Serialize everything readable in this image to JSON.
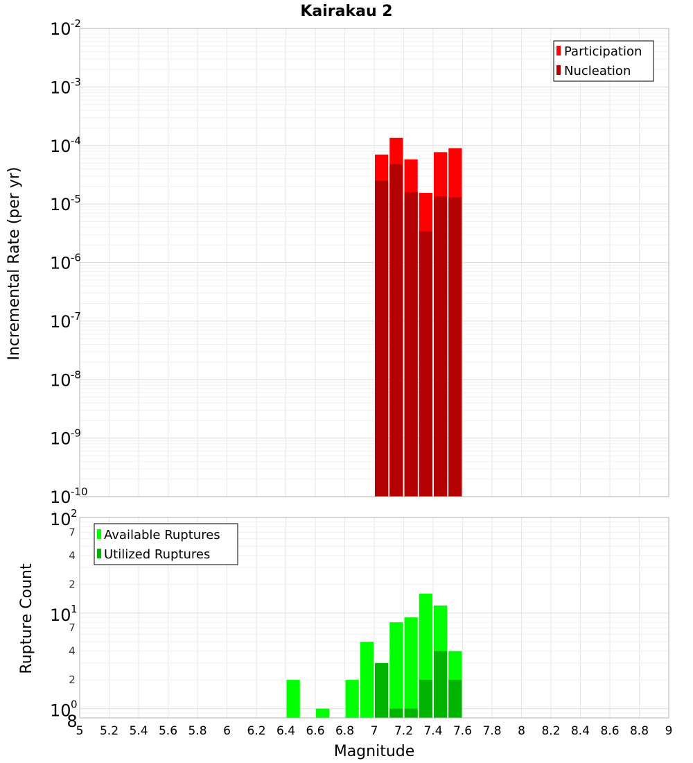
{
  "chart_data": [
    {
      "type": "bar",
      "title": "Kairakau 2",
      "xlabel": "",
      "ylabel": "Incremental Rate (per yr)",
      "y_scale": "log",
      "xlim": [
        5,
        9
      ],
      "ylim": [
        1e-10,
        0.01
      ],
      "y_tick_labels": [
        {
          "base": "10",
          "exp": "-10",
          "value": 1e-10
        },
        {
          "base": "10",
          "exp": "-9",
          "value": 1e-09
        },
        {
          "base": "10",
          "exp": "-8",
          "value": 1e-08
        },
        {
          "base": "10",
          "exp": "-7",
          "value": 1e-07
        },
        {
          "base": "10",
          "exp": "-6",
          "value": 1e-06
        },
        {
          "base": "10",
          "exp": "-5",
          "value": 1e-05
        },
        {
          "base": "10",
          "exp": "-4",
          "value": 0.0001
        },
        {
          "base": "10",
          "exp": "-3",
          "value": 0.001
        },
        {
          "base": "10",
          "exp": "-2",
          "value": 0.01
        }
      ],
      "legend": {
        "position": "top-right",
        "entries": [
          "Participation",
          "Nucleation"
        ]
      },
      "x": [
        7.05,
        7.15,
        7.25,
        7.35,
        7.45,
        7.55
      ],
      "series": [
        {
          "name": "Participation",
          "color": "#ff0000",
          "values": [
            7e-05,
            0.000135,
            5.8e-05,
            1.55e-05,
            7.7e-05,
            9e-05
          ]
        },
        {
          "name": "Nucleation",
          "color": "#b30000",
          "values": [
            2.5e-05,
            4.8e-05,
            1.6e-05,
            3.4e-06,
            1.35e-05,
            1.3e-05
          ]
        }
      ]
    },
    {
      "type": "bar",
      "title": "",
      "xlabel": "Magnitude",
      "ylabel": "Rupture Count",
      "y_scale": "log",
      "xlim": [
        5,
        9
      ],
      "ylim": [
        0.8,
        100
      ],
      "x_tick_labels": [
        "5",
        "5.2",
        "5.4",
        "5.6",
        "5.8",
        "6",
        "6.2",
        "6.4",
        "6.6",
        "6.8",
        "7",
        "7.2",
        "7.4",
        "7.6",
        "7.8",
        "8",
        "8.2",
        "8.4",
        "8.6",
        "8.8",
        "9"
      ],
      "y_major_labels": [
        {
          "base": "10",
          "exp": "0",
          "value": 1
        },
        {
          "base": "10",
          "exp": "1",
          "value": 10
        },
        {
          "base": "10",
          "exp": "2",
          "value": 100
        }
      ],
      "y_minor_labels": [
        {
          "label": "8",
          "value": 0.8
        },
        {
          "label": "2",
          "value": 2
        },
        {
          "label": "4",
          "value": 4
        },
        {
          "label": "7",
          "value": 7
        },
        {
          "label": "2",
          "value": 20
        },
        {
          "label": "4",
          "value": 40
        },
        {
          "label": "7",
          "value": 70
        }
      ],
      "legend": {
        "position": "top-left",
        "entries": [
          "Available Ruptures",
          "Utilized Ruptures"
        ]
      },
      "x": [
        6.45,
        6.65,
        6.85,
        6.95,
        7.05,
        7.15,
        7.25,
        7.35,
        7.45,
        7.55
      ],
      "series": [
        {
          "name": "Available Ruptures",
          "color": "#00ff00",
          "values": [
            2,
            1,
            2,
            5,
            3,
            8,
            9,
            16,
            12,
            4
          ]
        },
        {
          "name": "Utilized Ruptures",
          "color": "#00b300",
          "values": [
            0,
            0,
            0,
            0,
            3,
            1,
            1,
            2,
            4,
            2
          ]
        }
      ]
    }
  ]
}
